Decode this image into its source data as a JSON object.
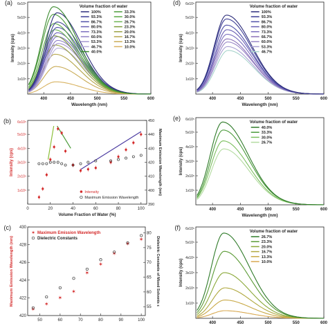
{
  "figure": {
    "panel_letters": [
      "(a)",
      "(b)",
      "(c)",
      "(d)",
      "(e)",
      "(f)"
    ]
  },
  "chart_data": [
    {
      "panel": "(a)",
      "type": "line",
      "xlabel": "Wavelength (nm)",
      "ylabel": "Intensity (cps)",
      "xlim": [
        370,
        600
      ],
      "ylim": [
        0,
        600000
      ],
      "x_ticks": [
        400,
        450,
        500,
        550,
        600
      ],
      "y_tick_labels": [
        "1x10⁵",
        "2x10⁵",
        "3x10⁵",
        "4x10⁵",
        "5x10⁵"
      ],
      "y_top_label": "6x10⁵",
      "legend_title": "Volume fraction of water",
      "legend_position": "top-right",
      "series": [
        {
          "name": "100%",
          "peak_x": 425,
          "peak_y": 530000,
          "color": "#2c2c7a"
        },
        {
          "name": "93.3%",
          "peak_x": 425,
          "peak_y": 470000,
          "color": "#3d3d95"
        },
        {
          "name": "86.7%",
          "peak_x": 425,
          "peak_y": 435000,
          "color": "#5050a8"
        },
        {
          "name": "80.0%",
          "peak_x": 425,
          "peak_y": 400000,
          "color": "#6a5fb4"
        },
        {
          "name": "73.3%",
          "peak_x": 425,
          "peak_y": 375000,
          "color": "#7c6fbf"
        },
        {
          "name": "60.0%",
          "peak_x": 426,
          "peak_y": 350000,
          "color": "#9080c6"
        },
        {
          "name": "53.3%",
          "peak_x": 427,
          "peak_y": 330000,
          "color": "#a496d0"
        },
        {
          "name": "46.7%",
          "peak_x": 427,
          "peak_y": 300000,
          "color": "#b8aedb"
        },
        {
          "name": "40.0%",
          "peak_x": 418,
          "peak_y": 570000,
          "color": "#3a8a2e"
        },
        {
          "name": "33.3%",
          "peak_x": 418,
          "peak_y": 520000,
          "color": "#4a9a38"
        },
        {
          "name": "30.0%",
          "peak_x": 419,
          "peak_y": 460000,
          "color": "#5aa843"
        },
        {
          "name": "26.7%",
          "peak_x": 420,
          "peak_y": 420000,
          "color": "#6db552"
        },
        {
          "name": "23.3%",
          "peak_x": 420,
          "peak_y": 380000,
          "color": "#7e9c3a"
        },
        {
          "name": "20.0%",
          "peak_x": 421,
          "peak_y": 320000,
          "color": "#9aa142"
        },
        {
          "name": "16.7%",
          "peak_x": 421,
          "peak_y": 260000,
          "color": "#b5a64a"
        },
        {
          "name": "13.3%",
          "peak_x": 422,
          "peak_y": 180000,
          "color": "#c9ab55"
        },
        {
          "name": "10.0%",
          "peak_x": 422,
          "peak_y": 80000,
          "color": "#d8b260"
        }
      ]
    },
    {
      "panel": "(b)",
      "type": "scatter",
      "xlabel": "Volume Fraction of Water (%)",
      "ylabel": "Intensity (cps)",
      "y2label": "Maximum Emission Wavelength (nm)",
      "xlim": [
        0,
        105
      ],
      "x_ticks": [
        0,
        20,
        40,
        60,
        80,
        100
      ],
      "ylim": [
        0,
        600000
      ],
      "y_tick_labels": [
        "1x10⁵",
        "2x10⁵",
        "3x10⁵",
        "4x10⁵",
        "5x10⁵"
      ],
      "y_top_label": "6x10⁵",
      "y2lim": [
        390,
        450
      ],
      "y2_ticks": [
        390,
        400,
        410,
        420,
        430,
        440,
        450
      ],
      "legend_position": "bottom-center",
      "series": [
        {
          "name": "Intensity",
          "axis": "left",
          "color": "#d42a2a",
          "x": [
            10,
            13.3,
            16.7,
            20,
            23.3,
            26.7,
            30,
            33.3,
            40,
            46.7,
            53.3,
            60,
            73.3,
            80,
            86.7,
            93.3,
            100
          ],
          "y": [
            50000,
            110000,
            210000,
            320000,
            410000,
            540000,
            510000,
            380000,
            280000,
            240000,
            250000,
            260000,
            300000,
            340000,
            390000,
            440000,
            500000
          ]
        },
        {
          "name": "Maximum Emission Wavelength",
          "axis": "right",
          "color": "#333333",
          "x": [
            10,
            13.3,
            16.7,
            20,
            23.3,
            26.7,
            30,
            33.3,
            40,
            46.7,
            53.3,
            60,
            73.3,
            80,
            86.7,
            93.3,
            100
          ],
          "y": [
            419,
            419,
            419,
            420,
            420,
            420,
            419,
            418,
            418,
            419,
            420,
            421,
            421,
            422,
            423,
            424,
            425
          ]
        }
      ]
    },
    {
      "panel": "(c)",
      "type": "scatter",
      "xlabel": "",
      "ylabel": "Maximum Emission Wavelength (nm)",
      "y2label": "Dielectric Constants of Mixed Solvents ε",
      "xlim": [
        44,
        102
      ],
      "x_ticks": [
        50,
        60,
        70,
        80,
        90,
        100
      ],
      "ylim": [
        420,
        430
      ],
      "y_ticks": [
        420,
        422,
        424,
        426,
        428,
        430
      ],
      "y2lim": [
        52,
        82
      ],
      "y2_ticks": [
        55,
        60,
        65,
        70,
        75,
        80
      ],
      "legend_position": "top-left",
      "series": [
        {
          "name": "Maximum Emission Wavelength",
          "axis": "left",
          "color": "#d42a2a",
          "x": [
            46.7,
            53.3,
            60,
            66.7,
            73.3,
            80,
            86.7,
            93.3,
            100
          ],
          "y": [
            420.7,
            421.3,
            422,
            422.7,
            424.8,
            425.8,
            427,
            428.1,
            428.6
          ]
        },
        {
          "name": "Dielectric Constants",
          "axis": "right",
          "color": "#333333",
          "x": [
            46.7,
            53.3,
            60,
            66.7,
            73.3,
            80,
            86.7,
            93.3,
            100
          ],
          "y": [
            54.6,
            58.3,
            61.4,
            64.6,
            67.7,
            70.9,
            73.5,
            76.6,
            79.1
          ]
        }
      ]
    },
    {
      "panel": "(d)",
      "type": "line",
      "xlabel": "Wavelength (nm)",
      "ylabel": "Intensity (cps)",
      "xlim": [
        370,
        600
      ],
      "ylim": [
        0,
        600000
      ],
      "x_ticks": [
        400,
        450,
        500,
        550,
        600
      ],
      "y_tick_labels": [
        "1x10⁵",
        "2x10⁵",
        "3x10⁵",
        "4x10⁵",
        "5x10⁵"
      ],
      "y_top_label": "6x10⁵",
      "legend_title": "Volume fraction of water",
      "legend_position": "top-right",
      "series": [
        {
          "name": "100%",
          "peak_x": 425,
          "peak_y": 515000,
          "color": "#2c2c7a"
        },
        {
          "name": "93.3%",
          "peak_x": 425,
          "peak_y": 490000,
          "color": "#3d3d95"
        },
        {
          "name": "86.7%",
          "peak_x": 425,
          "peak_y": 450000,
          "color": "#5050a8"
        },
        {
          "name": "80.0%",
          "peak_x": 426,
          "peak_y": 420000,
          "color": "#6a5fb4"
        },
        {
          "name": "73.3%",
          "peak_x": 426,
          "peak_y": 390000,
          "color": "#7c6fbf"
        },
        {
          "name": "66.7%",
          "peak_x": 426,
          "peak_y": 360000,
          "color": "#8a70b8"
        },
        {
          "name": "60.0%",
          "peak_x": 427,
          "peak_y": 340000,
          "color": "#9a88c8"
        },
        {
          "name": "53.3%",
          "peak_x": 427,
          "peak_y": 310000,
          "color": "#aaa0d3"
        },
        {
          "name": "46.7%",
          "peak_x": 428,
          "peak_y": 285000,
          "color": "#a8d4cc"
        }
      ]
    },
    {
      "panel": "(e)",
      "type": "line",
      "xlabel": "Wavelength (nm)",
      "ylabel": "Intensity (cps)",
      "xlim": [
        370,
        600
      ],
      "ylim": [
        0,
        600000
      ],
      "x_ticks": [
        400,
        450,
        500,
        550,
        600
      ],
      "y_tick_labels": [
        "1x10⁵",
        "2x10⁵",
        "3x10⁵",
        "4x10⁵",
        "5x10⁵"
      ],
      "y_top_label": "6x10⁵",
      "legend_title": "Volume fraction of water",
      "legend_position": "top-right",
      "series": [
        {
          "name": "40.0%",
          "peak_x": 418,
          "peak_y": 570000,
          "color": "#2e7a28"
        },
        {
          "name": "33.3%",
          "peak_x": 419,
          "peak_y": 515000,
          "color": "#4a9a3a"
        },
        {
          "name": "30.0%",
          "peak_x": 419,
          "peak_y": 440000,
          "color": "#7bbf5e"
        },
        {
          "name": "26.7%",
          "peak_x": 420,
          "peak_y": 385000,
          "color": "#b3dba0"
        }
      ]
    },
    {
      "panel": "(f)",
      "type": "line",
      "xlabel": "",
      "ylabel": "Intensity (cps)",
      "xlim": [
        370,
        600
      ],
      "ylim": [
        0,
        600000
      ],
      "x_ticks": [
        400,
        450,
        500,
        550,
        600
      ],
      "y_tick_labels": [
        "1x10⁵",
        "2x10⁵",
        "3x10⁵",
        "4x10⁵",
        "5x10⁵"
      ],
      "y_top_label": "6x10⁵",
      "legend_title": "Volume fraction of water",
      "legend_position": "top-right",
      "series": [
        {
          "name": "26.7%",
          "peak_x": 420,
          "peak_y": 560000,
          "color": "#2e7a28"
        },
        {
          "name": "23.3%",
          "peak_x": 421,
          "peak_y": 440000,
          "color": "#5a9a35"
        },
        {
          "name": "20.0%",
          "peak_x": 421,
          "peak_y": 300000,
          "color": "#8aa838"
        },
        {
          "name": "16.7%",
          "peak_x": 422,
          "peak_y": 200000,
          "color": "#b0a83e"
        },
        {
          "name": "13.3%",
          "peak_x": 422,
          "peak_y": 120000,
          "color": "#c8a845"
        },
        {
          "name": "10.0%",
          "peak_x": 422,
          "peak_y": 50000,
          "color": "#d8a850"
        }
      ]
    }
  ]
}
